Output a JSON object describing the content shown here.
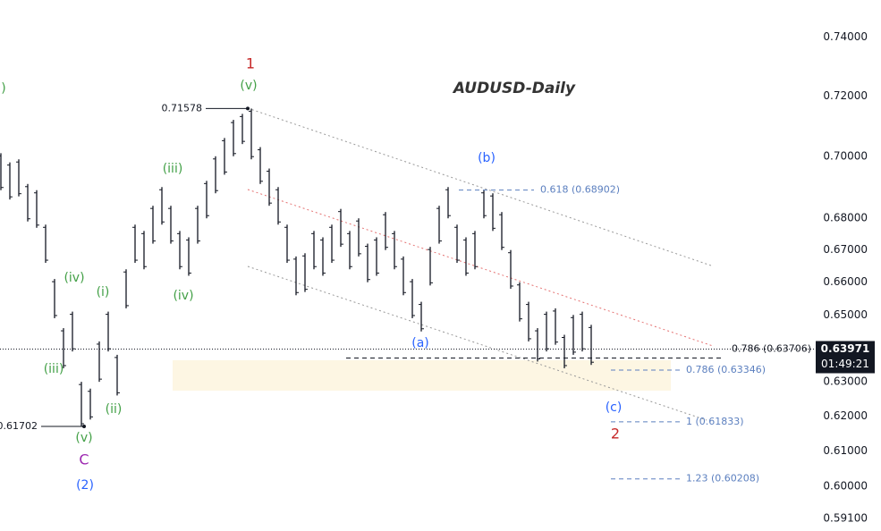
{
  "chart_data": {
    "type": "ohlc-bars",
    "title": "AUDUSD-Daily",
    "log_scale": true,
    "color": "#131722",
    "ylim": [
      0.5876,
      0.753
    ],
    "yticks": [
      {
        "value": 0.74,
        "label": "0.74000"
      },
      {
        "value": 0.72,
        "label": "0.72000"
      },
      {
        "value": 0.7,
        "label": "0.70000"
      },
      {
        "value": 0.68,
        "label": "0.68000"
      },
      {
        "value": 0.67,
        "label": "0.67000"
      },
      {
        "value": 0.66,
        "label": "0.66000"
      },
      {
        "value": 0.65,
        "label": "0.65000"
      },
      {
        "value": 0.63,
        "label": "0.63000"
      },
      {
        "value": 0.62,
        "label": "0.62000"
      },
      {
        "value": 0.61,
        "label": "0.61000"
      },
      {
        "value": 0.6,
        "label": "0.60000"
      },
      {
        "value": 0.591,
        "label": "0.59100"
      }
    ],
    "high": [
      0.701,
      0.698,
      0.699,
      0.691,
      0.689,
      0.678,
      0.661,
      0.646,
      0.651,
      0.63,
      0.628,
      0.642,
      0.651,
      0.638,
      0.664,
      0.678,
      0.676,
      0.684,
      0.69,
      0.684,
      0.676,
      0.674,
      0.684,
      0.692,
      0.7,
      0.706,
      0.712,
      0.714,
      0.71578,
      0.703,
      0.696,
      0.69,
      0.678,
      0.668,
      0.669,
      0.676,
      0.674,
      0.678,
      0.683,
      0.676,
      0.68,
      0.672,
      0.674,
      0.682,
      0.676,
      0.668,
      0.661,
      0.654,
      0.671,
      0.684,
      0.69,
      0.678,
      0.674,
      0.676,
      0.689,
      0.688,
      0.682,
      0.67,
      0.66,
      0.654,
      0.646,
      0.651,
      0.652,
      0.644,
      0.65,
      0.651,
      0.647
    ],
    "low": [
      0.689,
      0.686,
      0.687,
      0.679,
      0.677,
      0.666,
      0.649,
      0.634,
      0.639,
      0.61702,
      0.619,
      0.63,
      0.639,
      0.626,
      0.652,
      0.666,
      0.664,
      0.672,
      0.678,
      0.672,
      0.664,
      0.662,
      0.672,
      0.68,
      0.688,
      0.694,
      0.7,
      0.704,
      0.699,
      0.691,
      0.684,
      0.678,
      0.666,
      0.656,
      0.657,
      0.664,
      0.662,
      0.666,
      0.671,
      0.664,
      0.668,
      0.66,
      0.662,
      0.67,
      0.664,
      0.656,
      0.649,
      0.645,
      0.659,
      0.672,
      0.68,
      0.666,
      0.662,
      0.664,
      0.68,
      0.676,
      0.67,
      0.658,
      0.648,
      0.642,
      0.636,
      0.639,
      0.641,
      0.634,
      0.638,
      0.639,
      0.635
    ],
    "point_labels": [
      {
        "value": 0.71578,
        "label": "0.71578"
      },
      {
        "value": 0.61702,
        "label": "0.61702"
      }
    ],
    "fib_levels": [
      {
        "value": 0.68902,
        "label": "0.618 (0.68902)"
      },
      {
        "value": 0.63346,
        "label": "0.786 (0.63346)"
      },
      {
        "value": 0.61833,
        "label": "1 (0.61833)"
      },
      {
        "value": 0.60208,
        "label": "1.23 (0.60208)"
      }
    ],
    "retrace_level": {
      "value": 0.63706,
      "label": "0.786 (0.63706)"
    },
    "last_price": {
      "value": 0.63971,
      "label": "0.63971"
    },
    "countdown": "01:49:21",
    "annotations": [
      {
        "text": ")",
        "color": "#43a047"
      },
      {
        "text": "1",
        "color": "#c62828"
      },
      {
        "text": "(v)",
        "color": "#43a047"
      },
      {
        "text": "(iii)",
        "color": "#43a047"
      },
      {
        "text": "(iv)",
        "color": "#43a047"
      },
      {
        "text": "(i)",
        "color": "#43a047"
      },
      {
        "text": "(iv)",
        "color": "#43a047"
      },
      {
        "text": "(iii)",
        "color": "#43a047"
      },
      {
        "text": "(ii)",
        "color": "#43a047"
      },
      {
        "text": "(v)",
        "color": "#43a047"
      },
      {
        "text": "C",
        "color": "#9c27b0"
      },
      {
        "text": "(2)",
        "color": "#2962ff"
      },
      {
        "text": "(b)",
        "color": "#2962ff"
      },
      {
        "text": "(a)",
        "color": "#2962ff"
      },
      {
        "text": "(c)",
        "color": "#2962ff"
      },
      {
        "text": "2",
        "color": "#c62828"
      }
    ]
  }
}
